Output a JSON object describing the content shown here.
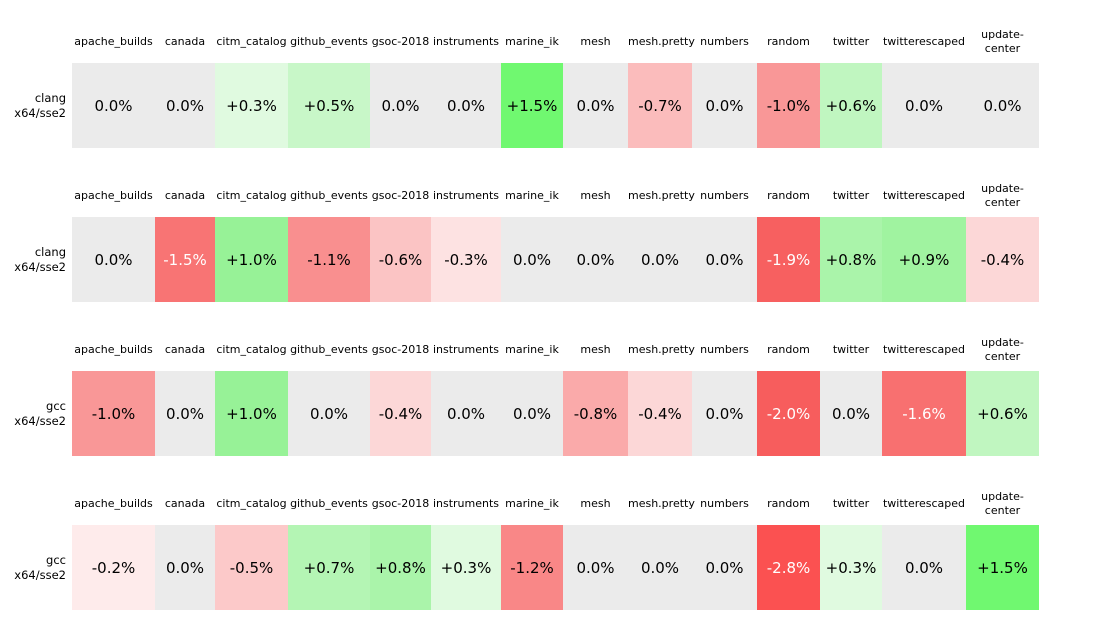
{
  "columns": [
    "apache_builds",
    "canada",
    "citm_catalog",
    "github_events",
    "gsoc-2018",
    "instruments",
    "marine_ik",
    "mesh",
    "mesh.pretty",
    "numbers",
    "random",
    "twitter",
    "twitterescaped",
    "update-center"
  ],
  "palette": {
    "zero_bg": "#ebebeb",
    "max_green_bg": "#70f870",
    "max_red_bg": "#fb5151",
    "dark_text": "#000000",
    "light_text": "#ffffff"
  },
  "rows": [
    {
      "label_line1": "clang",
      "label_line2": "x64/sse2",
      "cells": [
        {
          "label": "0.0%",
          "bg": "#ebebeb",
          "fg": "#000000"
        },
        {
          "label": "0.0%",
          "bg": "#ebebeb",
          "fg": "#000000"
        },
        {
          "label": "+0.3%",
          "bg": "#e0fae0",
          "fg": "#000000"
        },
        {
          "label": "+0.5%",
          "bg": "#c8f7c8",
          "fg": "#000000"
        },
        {
          "label": "0.0%",
          "bg": "#ebebeb",
          "fg": "#000000"
        },
        {
          "label": "0.0%",
          "bg": "#ebebeb",
          "fg": "#000000"
        },
        {
          "label": "+1.5%",
          "bg": "#70f870",
          "fg": "#000000"
        },
        {
          "label": "0.0%",
          "bg": "#ebebeb",
          "fg": "#000000"
        },
        {
          "label": "-0.7%",
          "bg": "#fbbcbc",
          "fg": "#000000"
        },
        {
          "label": "0.0%",
          "bg": "#ebebeb",
          "fg": "#000000"
        },
        {
          "label": "-1.0%",
          "bg": "#f99797",
          "fg": "#000000"
        },
        {
          "label": "+0.6%",
          "bg": "#c0f6c0",
          "fg": "#000000"
        },
        {
          "label": "0.0%",
          "bg": "#ebebeb",
          "fg": "#000000"
        },
        {
          "label": "0.0%",
          "bg": "#ebebeb",
          "fg": "#000000"
        }
      ]
    },
    {
      "label_line1": "clang",
      "label_line2": "x64/sse2",
      "cells": [
        {
          "label": "0.0%",
          "bg": "#ebebeb",
          "fg": "#000000"
        },
        {
          "label": "-1.5%",
          "bg": "#f87474",
          "fg": "#ffffff"
        },
        {
          "label": "+1.0%",
          "bg": "#97f297",
          "fg": "#000000"
        },
        {
          "label": "-1.1%",
          "bg": "#f98f8f",
          "fg": "#000000"
        },
        {
          "label": "-0.6%",
          "bg": "#fbc4c4",
          "fg": "#000000"
        },
        {
          "label": "-0.3%",
          "bg": "#fde2e2",
          "fg": "#000000"
        },
        {
          "label": "0.0%",
          "bg": "#ebebeb",
          "fg": "#000000"
        },
        {
          "label": "0.0%",
          "bg": "#ebebeb",
          "fg": "#000000"
        },
        {
          "label": "0.0%",
          "bg": "#ebebeb",
          "fg": "#000000"
        },
        {
          "label": "0.0%",
          "bg": "#ebebeb",
          "fg": "#000000"
        },
        {
          "label": "-1.9%",
          "bg": "#f76060",
          "fg": "#ffffff"
        },
        {
          "label": "+0.8%",
          "bg": "#aaf4aa",
          "fg": "#000000"
        },
        {
          "label": "+0.9%",
          "bg": "#a0f3a0",
          "fg": "#000000"
        },
        {
          "label": "-0.4%",
          "bg": "#fcd7d7",
          "fg": "#000000"
        }
      ]
    },
    {
      "label_line1": "gcc",
      "label_line2": "x64/sse2",
      "cells": [
        {
          "label": "-1.0%",
          "bg": "#f99797",
          "fg": "#000000"
        },
        {
          "label": "0.0%",
          "bg": "#ebebeb",
          "fg": "#000000"
        },
        {
          "label": "+1.0%",
          "bg": "#97f297",
          "fg": "#000000"
        },
        {
          "label": "0.0%",
          "bg": "#ebebeb",
          "fg": "#000000"
        },
        {
          "label": "-0.4%",
          "bg": "#fcd7d7",
          "fg": "#000000"
        },
        {
          "label": "0.0%",
          "bg": "#ebebeb",
          "fg": "#000000"
        },
        {
          "label": "0.0%",
          "bg": "#ebebeb",
          "fg": "#000000"
        },
        {
          "label": "-0.8%",
          "bg": "#faaaaa",
          "fg": "#000000"
        },
        {
          "label": "-0.4%",
          "bg": "#fcd7d7",
          "fg": "#000000"
        },
        {
          "label": "0.0%",
          "bg": "#ebebeb",
          "fg": "#000000"
        },
        {
          "label": "-2.0%",
          "bg": "#f75d5d",
          "fg": "#ffffff"
        },
        {
          "label": "0.0%",
          "bg": "#ebebeb",
          "fg": "#000000"
        },
        {
          "label": "-1.6%",
          "bg": "#f87070",
          "fg": "#ffffff"
        },
        {
          "label": "+0.6%",
          "bg": "#c0f6c0",
          "fg": "#000000"
        }
      ]
    },
    {
      "label_line1": "gcc",
      "label_line2": "x64/sse2",
      "cells": [
        {
          "label": "-0.2%",
          "bg": "#feebeb",
          "fg": "#000000"
        },
        {
          "label": "0.0%",
          "bg": "#ebebeb",
          "fg": "#000000"
        },
        {
          "label": "-0.5%",
          "bg": "#fcc9c9",
          "fg": "#000000"
        },
        {
          "label": "+0.7%",
          "bg": "#b4f5b4",
          "fg": "#000000"
        },
        {
          "label": "+0.8%",
          "bg": "#aaf4aa",
          "fg": "#000000"
        },
        {
          "label": "+0.3%",
          "bg": "#e0fae0",
          "fg": "#000000"
        },
        {
          "label": "-1.2%",
          "bg": "#f98787",
          "fg": "#000000"
        },
        {
          "label": "0.0%",
          "bg": "#ebebeb",
          "fg": "#000000"
        },
        {
          "label": "0.0%",
          "bg": "#ebebeb",
          "fg": "#000000"
        },
        {
          "label": "0.0%",
          "bg": "#ebebeb",
          "fg": "#000000"
        },
        {
          "label": "-2.8%",
          "bg": "#fb5151",
          "fg": "#ffffff"
        },
        {
          "label": "+0.3%",
          "bg": "#e0fae0",
          "fg": "#000000"
        },
        {
          "label": "0.0%",
          "bg": "#ebebeb",
          "fg": "#000000"
        },
        {
          "label": "+1.5%",
          "bg": "#70f870",
          "fg": "#000000"
        }
      ]
    }
  ],
  "chart_data": {
    "type": "heatmap",
    "title": "",
    "unit": "percent change",
    "categories": [
      "apache_builds",
      "canada",
      "citm_catalog",
      "github_events",
      "gsoc-2018",
      "instruments",
      "marine_ik",
      "mesh",
      "mesh.pretty",
      "numbers",
      "random",
      "twitter",
      "twitterescaped",
      "update-center"
    ],
    "series": [
      {
        "name": "clang x64/sse2",
        "values": [
          0.0,
          0.0,
          0.3,
          0.5,
          0.0,
          0.0,
          1.5,
          0.0,
          -0.7,
          0.0,
          -1.0,
          0.6,
          0.0,
          0.0
        ]
      },
      {
        "name": "clang x64/sse2",
        "values": [
          0.0,
          -1.5,
          1.0,
          -1.1,
          -0.6,
          -0.3,
          0.0,
          0.0,
          0.0,
          0.0,
          -1.9,
          0.8,
          0.9,
          -0.4
        ]
      },
      {
        "name": "gcc x64/sse2",
        "values": [
          -1.0,
          0.0,
          1.0,
          0.0,
          -0.4,
          0.0,
          0.0,
          -0.8,
          -0.4,
          0.0,
          -2.0,
          0.0,
          -1.6,
          0.6
        ]
      },
      {
        "name": "gcc x64/sse2",
        "values": [
          -0.2,
          0.0,
          -0.5,
          0.7,
          0.8,
          0.3,
          -1.2,
          0.0,
          0.0,
          0.0,
          -2.8,
          0.3,
          0.0,
          1.5
        ]
      }
    ],
    "colormap": {
      "positive": "green scale",
      "negative": "red scale",
      "zero": "light gray"
    },
    "legend_position": "none",
    "grid": false
  }
}
